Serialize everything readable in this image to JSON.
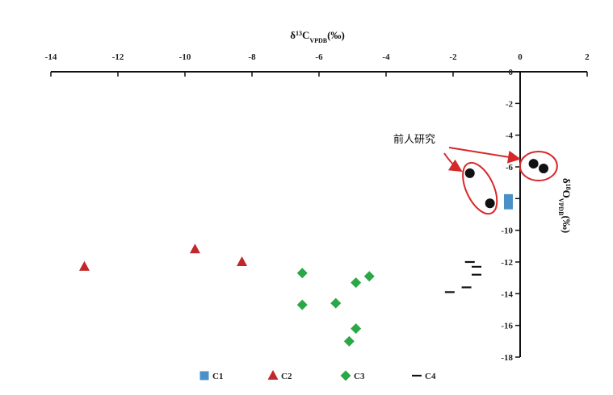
{
  "chart_data": {
    "type": "scatter",
    "x_axis": {
      "label_main": "δ",
      "label_sup": "13",
      "label_element": "C",
      "label_sub": "VPDB",
      "label_unit": "(‰)",
      "range": [
        -14,
        2
      ],
      "ticks": [
        "-14",
        "-12",
        "-10",
        "-8",
        "-6",
        "-4",
        "-2",
        "0",
        "2"
      ],
      "position": "top"
    },
    "y_axis": {
      "label_main": "δ",
      "label_sup": "18",
      "label_element": "O",
      "label_sub": "VPDB",
      "label_unit": "(‰)",
      "range": [
        -18,
        0
      ],
      "ticks": [
        "0",
        "-2",
        "-4",
        "-6",
        "-8",
        "-10",
        "-12",
        "-14",
        "-16",
        "-18"
      ],
      "position": "x=0"
    },
    "series": [
      {
        "name": "C1",
        "marker": "square",
        "color": "#4a90c8",
        "points": [
          [
            -0.35,
            -8.0
          ],
          [
            -0.35,
            -8.4
          ]
        ]
      },
      {
        "name": "C2",
        "marker": "triangle",
        "color": "#c0282a",
        "points": [
          [
            -13.0,
            -12.3
          ],
          [
            -9.7,
            -11.2
          ],
          [
            -8.3,
            -12.0
          ]
        ]
      },
      {
        "name": "C3",
        "marker": "diamond",
        "color": "#2aa845",
        "points": [
          [
            -6.5,
            -12.7
          ],
          [
            -6.5,
            -14.7
          ],
          [
            -5.5,
            -14.6
          ],
          [
            -4.9,
            -13.3
          ],
          [
            -4.5,
            -12.9
          ],
          [
            -4.9,
            -16.2
          ],
          [
            -5.1,
            -17.0
          ]
        ]
      },
      {
        "name": "C4",
        "marker": "dash",
        "color": "#111111",
        "points": [
          [
            -1.5,
            -12.0
          ],
          [
            -1.3,
            -12.3
          ],
          [
            -1.3,
            -12.8
          ],
          [
            -1.6,
            -13.6
          ],
          [
            -2.1,
            -13.9
          ]
        ]
      },
      {
        "name": "",
        "marker": "circle",
        "color": "#111111",
        "points": [
          [
            -1.5,
            -6.4
          ],
          [
            -0.9,
            -8.3
          ],
          [
            0.4,
            -5.8
          ],
          [
            0.7,
            -6.1
          ]
        ]
      }
    ],
    "annotation": {
      "text": "前人研究",
      "arrow_color": "#d6282a"
    },
    "legend": {
      "placement": "bottom",
      "entries": [
        "C1",
        "C2",
        "C3",
        "C4"
      ]
    },
    "grid": false
  }
}
